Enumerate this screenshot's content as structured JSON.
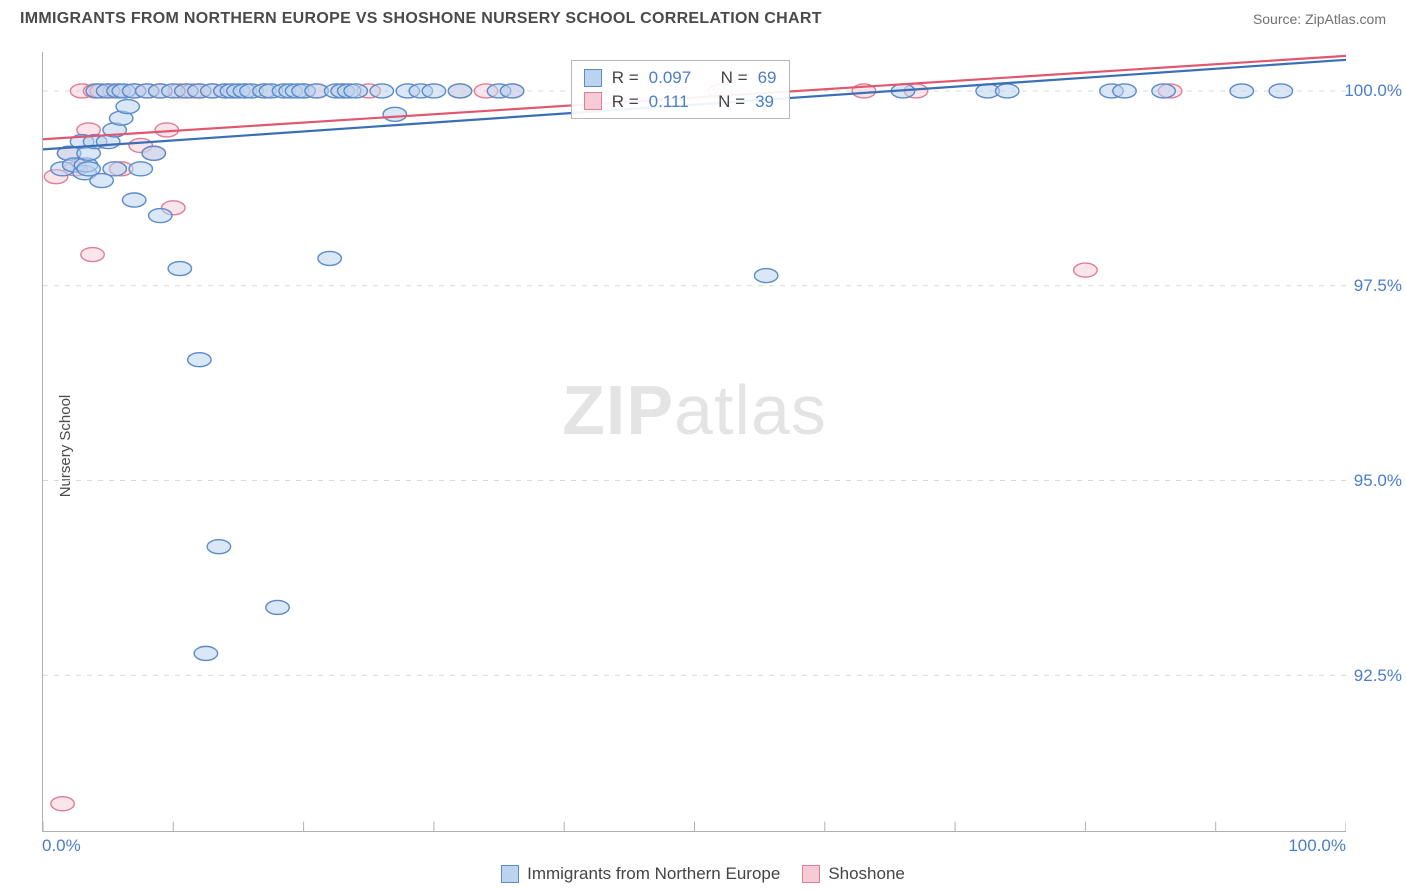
{
  "header": {
    "title": "IMMIGRANTS FROM NORTHERN EUROPE VS SHOSHONE NURSERY SCHOOL CORRELATION CHART",
    "source_label": "Source:",
    "source_name": "ZipAtlas.com"
  },
  "chart": {
    "type": "scatter",
    "ylabel": "Nursery School",
    "watermark": {
      "bold": "ZIP",
      "rest": "atlas"
    },
    "background_color": "#ffffff",
    "grid_color": "#d9d9d9",
    "axis_color": "#b0b0b0",
    "xlim": [
      0,
      100
    ],
    "ylim": [
      90.5,
      100.5
    ],
    "x_ticks": [
      0,
      10,
      20,
      30,
      40,
      50,
      60,
      70,
      80,
      90,
      100
    ],
    "x_tick_labels": {
      "0": "0.0%",
      "100": "100.0%"
    },
    "y_ticks": [
      92.5,
      95.0,
      97.5,
      100.0
    ],
    "y_tick_labels": [
      "92.5%",
      "95.0%",
      "97.5%",
      "100.0%"
    ],
    "marker_radius": 9,
    "marker_stroke_width": 1.4,
    "trend_line_width": 2.2,
    "series": [
      {
        "id": "immigrants",
        "label": "Immigrants from Northern Europe",
        "fill": "#bcd3ee",
        "stroke": "#5b8bc9",
        "fill_opacity": 0.55,
        "trend": {
          "x1": 0,
          "y1": 99.25,
          "x2": 100,
          "y2": 100.4,
          "color": "#3a6fb6"
        },
        "stats": {
          "R": "0.097",
          "N": "69"
        },
        "points": [
          [
            1.5,
            99.0
          ],
          [
            2.0,
            99.2
          ],
          [
            2.4,
            99.05
          ],
          [
            3.0,
            99.35
          ],
          [
            3.2,
            98.95
          ],
          [
            3.3,
            99.05
          ],
          [
            3.5,
            99.2
          ],
          [
            3.5,
            99.0
          ],
          [
            4.0,
            99.35
          ],
          [
            4.2,
            100.0
          ],
          [
            4.5,
            98.85
          ],
          [
            5.0,
            99.35
          ],
          [
            5.0,
            100.0
          ],
          [
            5.5,
            99.0
          ],
          [
            5.5,
            99.5
          ],
          [
            5.8,
            100.0
          ],
          [
            6.0,
            99.65
          ],
          [
            6.2,
            100.0
          ],
          [
            6.5,
            99.8
          ],
          [
            7.0,
            98.6
          ],
          [
            7.0,
            100.0
          ],
          [
            7.5,
            99.0
          ],
          [
            8.0,
            100.0
          ],
          [
            8.5,
            99.2
          ],
          [
            9.0,
            98.4
          ],
          [
            9.0,
            100.0
          ],
          [
            10.0,
            100.0
          ],
          [
            10.5,
            97.72
          ],
          [
            11.0,
            100.0
          ],
          [
            12.0,
            100.0
          ],
          [
            12.0,
            96.55
          ],
          [
            12.5,
            92.78
          ],
          [
            13.0,
            100.0
          ],
          [
            13.5,
            94.15
          ],
          [
            14.0,
            100.0
          ],
          [
            14.5,
            100.0
          ],
          [
            15.0,
            100.0
          ],
          [
            15.5,
            100.0
          ],
          [
            16.0,
            100.0
          ],
          [
            17.0,
            100.0
          ],
          [
            17.5,
            100.0
          ],
          [
            18.0,
            93.37
          ],
          [
            18.5,
            100.0
          ],
          [
            19.0,
            100.0
          ],
          [
            19.5,
            100.0
          ],
          [
            20.0,
            100.0
          ],
          [
            21.0,
            100.0
          ],
          [
            22.0,
            97.85
          ],
          [
            22.5,
            100.0
          ],
          [
            23.0,
            100.0
          ],
          [
            23.5,
            100.0
          ],
          [
            24.0,
            100.0
          ],
          [
            26.0,
            100.0
          ],
          [
            27.0,
            99.7
          ],
          [
            28.0,
            100.0
          ],
          [
            29.0,
            100.0
          ],
          [
            30.0,
            100.0
          ],
          [
            32.0,
            100.0
          ],
          [
            35.0,
            100.0
          ],
          [
            36.0,
            100.0
          ],
          [
            55.5,
            97.63
          ],
          [
            66.0,
            100.0
          ],
          [
            72.5,
            100.0
          ],
          [
            74.0,
            100.0
          ],
          [
            82.0,
            100.0
          ],
          [
            83.0,
            100.0
          ],
          [
            86.0,
            100.0
          ],
          [
            92.0,
            100.0
          ],
          [
            95.0,
            100.0
          ]
        ]
      },
      {
        "id": "shoshone",
        "label": "Shoshone",
        "fill": "#f6cbd5",
        "stroke": "#e07d98",
        "fill_opacity": 0.5,
        "trend": {
          "x1": 0,
          "y1": 99.38,
          "x2": 100,
          "y2": 100.45,
          "color": "#e0586f"
        },
        "stats": {
          "R": "0.111",
          "N": "39"
        },
        "points": [
          [
            1.0,
            98.9
          ],
          [
            1.5,
            90.85
          ],
          [
            2.0,
            99.2
          ],
          [
            2.5,
            99.0
          ],
          [
            3.0,
            100.0
          ],
          [
            3.5,
            99.5
          ],
          [
            3.8,
            97.9
          ],
          [
            4.0,
            100.0
          ],
          [
            4.5,
            100.0
          ],
          [
            5.0,
            100.0
          ],
          [
            5.5,
            100.0
          ],
          [
            6.0,
            99.0
          ],
          [
            7.0,
            100.0
          ],
          [
            7.5,
            99.3
          ],
          [
            8.0,
            100.0
          ],
          [
            8.5,
            99.2
          ],
          [
            9.0,
            100.0
          ],
          [
            9.5,
            99.5
          ],
          [
            10.0,
            98.5
          ],
          [
            10.5,
            100.0
          ],
          [
            11.0,
            100.0
          ],
          [
            11.5,
            100.0
          ],
          [
            12.0,
            100.0
          ],
          [
            13.0,
            100.0
          ],
          [
            14.0,
            100.0
          ],
          [
            15.5,
            100.0
          ],
          [
            17.0,
            100.0
          ],
          [
            20.0,
            100.0
          ],
          [
            21.0,
            100.0
          ],
          [
            23.0,
            100.0
          ],
          [
            25.0,
            100.0
          ],
          [
            32.0,
            100.0
          ],
          [
            34.0,
            100.0
          ],
          [
            36.0,
            100.0
          ],
          [
            52.0,
            100.0
          ],
          [
            63.0,
            100.0
          ],
          [
            67.0,
            100.0
          ],
          [
            80.0,
            97.7
          ],
          [
            86.5,
            100.0
          ]
        ]
      }
    ],
    "stats_box": {
      "left_pct": 40.5,
      "top_pct": 1.0
    }
  },
  "legend": {
    "items": [
      {
        "label": "Immigrants from Northern Europe",
        "fill": "#bcd3ee",
        "stroke": "#5b8bc9"
      },
      {
        "label": "Shoshone",
        "fill": "#f6cbd5",
        "stroke": "#e07d98"
      }
    ]
  }
}
